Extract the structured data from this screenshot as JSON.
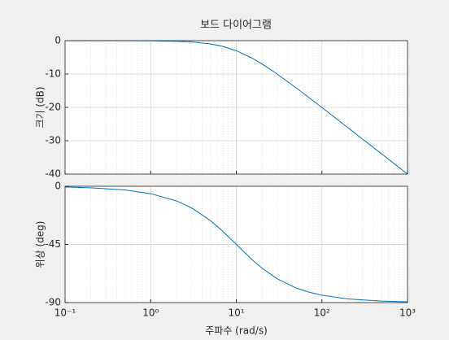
{
  "chart_data": [
    {
      "type": "line",
      "title": "보드 다이어그램",
      "ylabel": "크기 (dB)",
      "xscale": "log",
      "grid": true,
      "minor_grid": true,
      "x": [
        0.1,
        0.2,
        0.5,
        1,
        2,
        3,
        5,
        7,
        10,
        15,
        20,
        30,
        50,
        70,
        100,
        200,
        500,
        1000
      ],
      "series": [
        {
          "color": "#0072bd",
          "values": [
            0,
            0,
            0,
            -0.04,
            -0.17,
            -0.37,
            -0.97,
            -1.73,
            -3.01,
            -5.12,
            -6.99,
            -10,
            -14.15,
            -16.99,
            -20.04,
            -26.03,
            -33.98,
            -40
          ]
        }
      ],
      "xlim": [
        0.1,
        1000
      ],
      "xticks": [
        0.1,
        1,
        10,
        100,
        1000
      ],
      "ylim": [
        -40,
        0
      ],
      "yticks": [
        -40,
        -30,
        -20,
        -10,
        0
      ]
    },
    {
      "type": "line",
      "ylabel": "위상 (deg)",
      "xlabel": "주파수  (rad/s)",
      "xscale": "log",
      "grid": true,
      "minor_grid": true,
      "x": [
        0.1,
        0.2,
        0.5,
        1,
        2,
        3,
        5,
        7,
        10,
        15,
        20,
        30,
        50,
        70,
        100,
        200,
        500,
        1000
      ],
      "series": [
        {
          "color": "#0072bd",
          "values": [
            -0.57,
            -1.15,
            -2.86,
            -5.71,
            -11.31,
            -16.7,
            -26.57,
            -34.99,
            -45,
            -56.31,
            -63.43,
            -71.57,
            -78.69,
            -81.87,
            -84.29,
            -87.14,
            -88.85,
            -89.43
          ]
        }
      ],
      "xlim": [
        0.1,
        1000
      ],
      "xticks": [
        {
          "value": 0.1,
          "label": "10⁻¹"
        },
        {
          "value": 1,
          "label": "10⁰"
        },
        {
          "value": 10,
          "label": "10¹"
        },
        {
          "value": 100,
          "label": "10²"
        },
        {
          "value": 1000,
          "label": "10³"
        }
      ],
      "ylim": [
        -90,
        0
      ],
      "yticks": [
        -90,
        -45,
        0
      ]
    }
  ]
}
